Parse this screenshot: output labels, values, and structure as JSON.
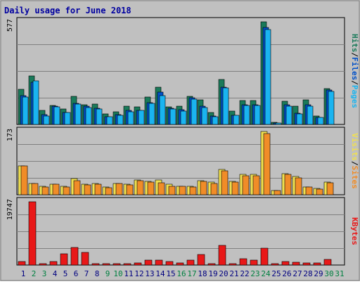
{
  "chart_data": [
    {
      "type": "bar",
      "title": "Daily usage for June 2018",
      "panel": "top",
      "max_label": "577",
      "ylim": [
        0,
        577
      ],
      "categories": [
        "1",
        "2",
        "3",
        "4",
        "5",
        "6",
        "7",
        "8",
        "9",
        "10",
        "11",
        "12",
        "13",
        "14",
        "15",
        "16",
        "17",
        "18",
        "19",
        "20",
        "21",
        "22",
        "23",
        "24",
        "25",
        "26",
        "27",
        "28",
        "29",
        "30",
        "31"
      ],
      "series": [
        {
          "name": "Hits",
          "color": "#1a7a5a",
          "values": [
            198,
            272,
            78,
            105,
            86,
            158,
            112,
            113,
            61,
            71,
            101,
            100,
            154,
            211,
            99,
            104,
            158,
            138,
            68,
            253,
            76,
            135,
            135,
            577,
            12,
            131,
            104,
            138,
            47,
            201,
            0
          ]
        },
        {
          "name": "Files",
          "color": "#0050c8",
          "values": [
            164,
            239,
            56,
            102,
            68,
            118,
            102,
            90,
            43,
            56,
            80,
            81,
            121,
            182,
            90,
            83,
            150,
            101,
            47,
            210,
            51,
            111,
            112,
            544,
            9,
            112,
            64,
            111,
            41,
            192,
            0
          ]
        },
        {
          "name": "Pages",
          "color": "#1ab4f0",
          "values": [
            154,
            246,
            48,
            99,
            66,
            114,
            95,
            87,
            42,
            51,
            72,
            78,
            118,
            164,
            87,
            77,
            143,
            96,
            44,
            204,
            50,
            106,
            107,
            533,
            7,
            104,
            58,
            102,
            38,
            184,
            0
          ]
        }
      ],
      "ylabel_parts": [
        "Pages",
        "/",
        "Files",
        "/",
        "Hits"
      ]
    },
    {
      "type": "bar",
      "panel": "middle",
      "max_label": "173",
      "ylim": [
        0,
        173
      ],
      "series": [
        {
          "name": "Visits",
          "color": "#f0e050",
          "values": [
            79,
            31,
            23,
            29,
            24,
            45,
            29,
            30,
            21,
            31,
            29,
            41,
            36,
            40,
            28,
            24,
            24,
            39,
            35,
            69,
            36,
            55,
            55,
            173,
            12,
            57,
            50,
            21,
            17,
            34,
            0
          ]
        },
        {
          "name": "Sites",
          "color": "#f08c28",
          "values": [
            78,
            30,
            22,
            28,
            21,
            38,
            27,
            28,
            20,
            30,
            26,
            38,
            34,
            33,
            24,
            23,
            22,
            37,
            31,
            65,
            35,
            52,
            51,
            168,
            11,
            56,
            47,
            21,
            16,
            32,
            0
          ]
        }
      ],
      "ylabel_parts": [
        "Sites",
        "/",
        "Visits"
      ]
    },
    {
      "type": "bar",
      "panel": "bottom",
      "max_label": "19747",
      "ylim": [
        0,
        19747
      ],
      "series": [
        {
          "name": "KBytes",
          "color": "#e81818",
          "values": [
            1200,
            19747,
            360,
            1020,
            3550,
            5400,
            3900,
            530,
            500,
            520,
            490,
            600,
            1500,
            1600,
            1020,
            720,
            1500,
            3390,
            500,
            6160,
            500,
            2000,
            1450,
            5350,
            400,
            1020,
            820,
            730,
            600,
            1800,
            0
          ]
        }
      ],
      "ylabel_parts": [
        "KBytes"
      ]
    }
  ],
  "x_labels": {
    "days": [
      "1",
      "2",
      "3",
      "4",
      "5",
      "6",
      "7",
      "8",
      "9",
      "10",
      "11",
      "12",
      "13",
      "14",
      "15",
      "16",
      "17",
      "18",
      "19",
      "20",
      "21",
      "22",
      "23",
      "24",
      "25",
      "26",
      "27",
      "28",
      "29",
      "30",
      "31"
    ],
    "weekend_days": [
      2,
      3,
      9,
      10,
      16,
      17,
      23,
      24,
      30,
      31
    ],
    "weekday_color": "#000080",
    "weekend_color": "#008040"
  },
  "label_colors": {
    "Hits": "#1a7a5a",
    "Files": "#0050c8",
    "Pages": "#1ab4f0",
    "Visits": "#f0e050",
    "Sites": "#f08c28",
    "KBytes": "#e81818",
    "slash": "#000000"
  },
  "title_color": "#0000a0",
  "panel_bg": "#c0c0c0"
}
